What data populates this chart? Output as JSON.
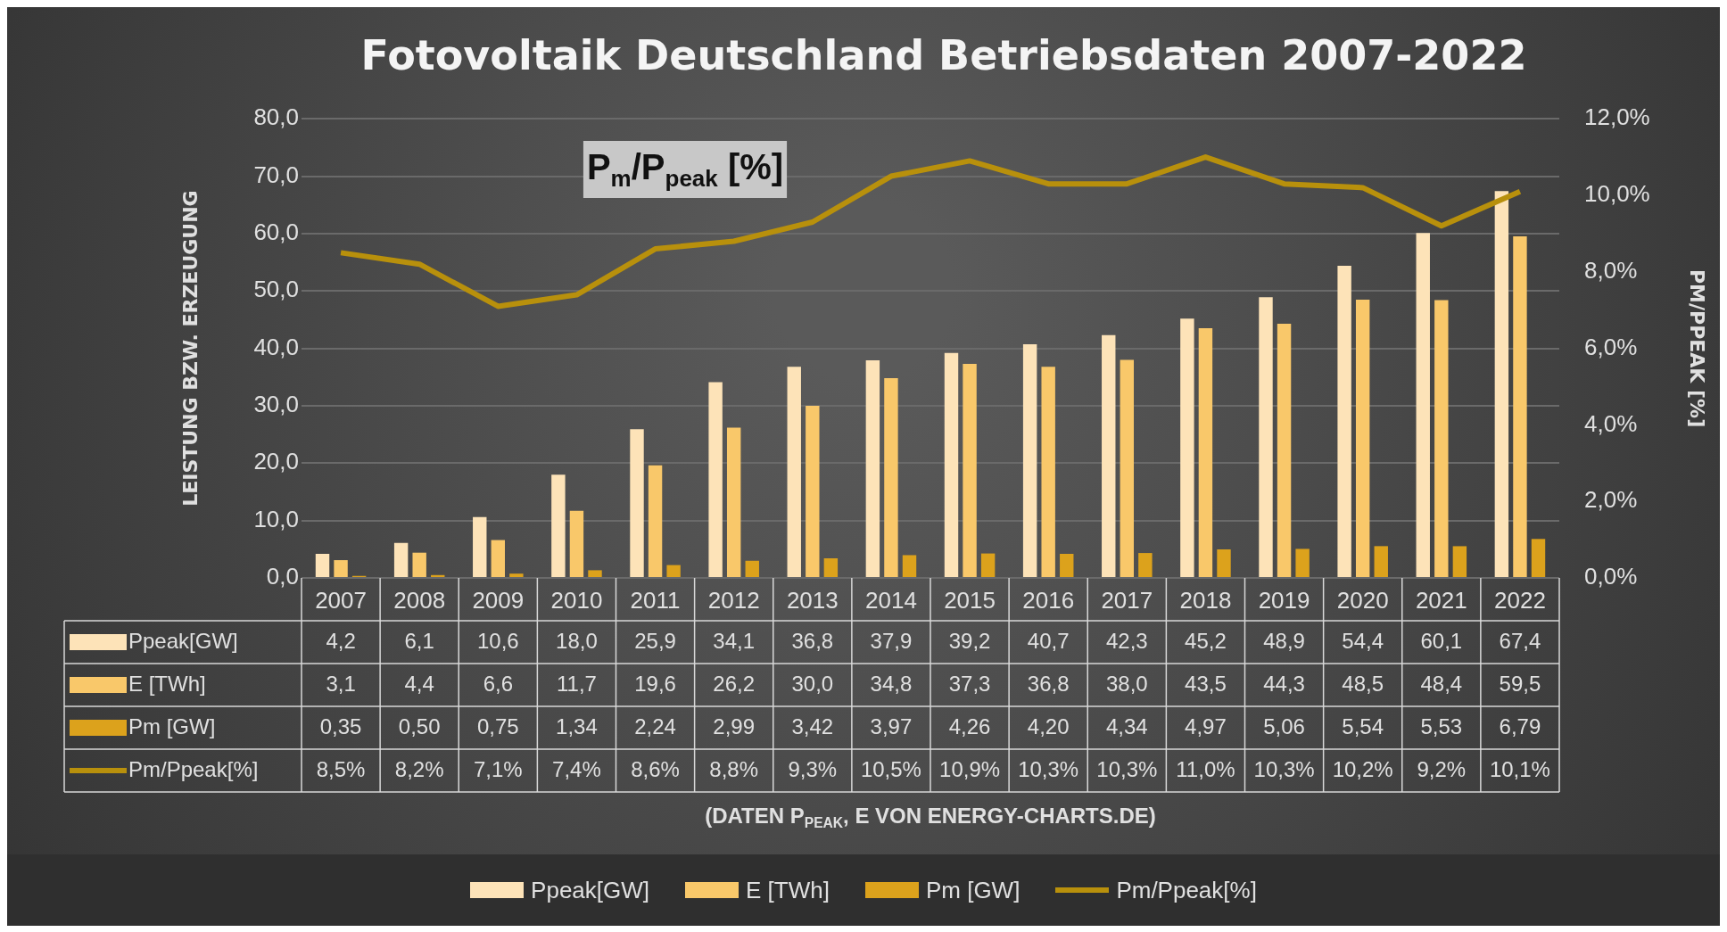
{
  "chart_data": {
    "type": "bar",
    "title": "Fotovoltaik Deutschland Betriebsdaten 2007-2022",
    "ylabel": "LEISTUNG BZW. ERZEUGUNG",
    "y2label": "PM/PPEAK [%]",
    "categories": [
      "2007",
      "2008",
      "2009",
      "2010",
      "2011",
      "2012",
      "2013",
      "2014",
      "2015",
      "2016",
      "2017",
      "2018",
      "2019",
      "2020",
      "2021",
      "2022"
    ],
    "series": [
      {
        "name": "Ppeak[GW]",
        "color": "#fde3b8",
        "values": [
          4.2,
          6.1,
          10.6,
          18.0,
          25.9,
          34.1,
          36.8,
          37.9,
          39.2,
          40.7,
          42.3,
          45.2,
          48.9,
          54.4,
          60.1,
          67.4
        ],
        "value_labels": [
          "4,2",
          "6,1",
          "10,6",
          "18,0",
          "25,9",
          "34,1",
          "36,8",
          "37,9",
          "39,2",
          "40,7",
          "42,3",
          "45,2",
          "48,9",
          "54,4",
          "60,1",
          "67,4"
        ]
      },
      {
        "name": "E [TWh]",
        "color": "#f9c86a",
        "values": [
          3.1,
          4.4,
          6.6,
          11.7,
          19.6,
          26.2,
          30.0,
          34.8,
          37.3,
          36.8,
          38.0,
          43.5,
          44.3,
          48.5,
          48.4,
          59.5
        ],
        "value_labels": [
          "3,1",
          "4,4",
          "6,6",
          "11,7",
          "19,6",
          "26,2",
          "30,0",
          "34,8",
          "37,3",
          "36,8",
          "38,0",
          "43,5",
          "44,3",
          "48,5",
          "48,4",
          "59,5"
        ]
      },
      {
        "name": "Pm [GW]",
        "color": "#dca21c",
        "values": [
          0.35,
          0.5,
          0.75,
          1.34,
          2.24,
          2.99,
          3.42,
          3.97,
          4.26,
          4.2,
          4.34,
          4.97,
          5.06,
          5.54,
          5.53,
          6.79
        ],
        "value_labels": [
          "0,35",
          "0,50",
          "0,75",
          "1,34",
          "2,24",
          "2,99",
          "3,42",
          "3,97",
          "4,26",
          "4,20",
          "4,34",
          "4,97",
          "5,06",
          "5,54",
          "5,53",
          "6,79"
        ]
      },
      {
        "name": "Pm/Ppeak[%]",
        "type": "line",
        "axis": "y2",
        "color": "#b8900c",
        "values": [
          8.5,
          8.2,
          7.1,
          7.4,
          8.6,
          8.8,
          9.3,
          10.5,
          10.9,
          10.3,
          10.3,
          11.0,
          10.3,
          10.2,
          9.2,
          10.1
        ],
        "value_labels": [
          "8,5%",
          "8,2%",
          "7,1%",
          "7,4%",
          "8,6%",
          "8,8%",
          "9,3%",
          "10,5%",
          "10,9%",
          "10,3%",
          "10,3%",
          "11,0%",
          "10,3%",
          "10,2%",
          "9,2%",
          "10,1%"
        ]
      }
    ],
    "ylim": [
      0,
      80
    ],
    "yticks": [
      {
        "value": 0,
        "label": "0,0"
      },
      {
        "value": 10,
        "label": "10,0"
      },
      {
        "value": 20,
        "label": "20,0"
      },
      {
        "value": 30,
        "label": "30,0"
      },
      {
        "value": 40,
        "label": "40,0"
      },
      {
        "value": 50,
        "label": "50,0"
      },
      {
        "value": 60,
        "label": "60,0"
      },
      {
        "value": 70,
        "label": "70,0"
      },
      {
        "value": 80,
        "label": "80,0"
      }
    ],
    "y2lim": [
      0,
      12
    ],
    "y2ticks": [
      {
        "value": 0,
        "label": "0,0%"
      },
      {
        "value": 2,
        "label": "2,0%"
      },
      {
        "value": 4,
        "label": "4,0%"
      },
      {
        "value": 6,
        "label": "6,0%"
      },
      {
        "value": 8,
        "label": "8,0%"
      },
      {
        "value": 10,
        "label": "10,0%"
      },
      {
        "value": 12,
        "label": "12,0%"
      }
    ],
    "grid": "y",
    "legend": "bottom",
    "marker": "none",
    "line_style": "solid",
    "annotations": [
      "P$_{m}$/P$_{peak}$ [%]",
      "(DATEN P$_{PEAK}$, E VON ENERGY-CHARTS.DE)"
    ]
  }
}
